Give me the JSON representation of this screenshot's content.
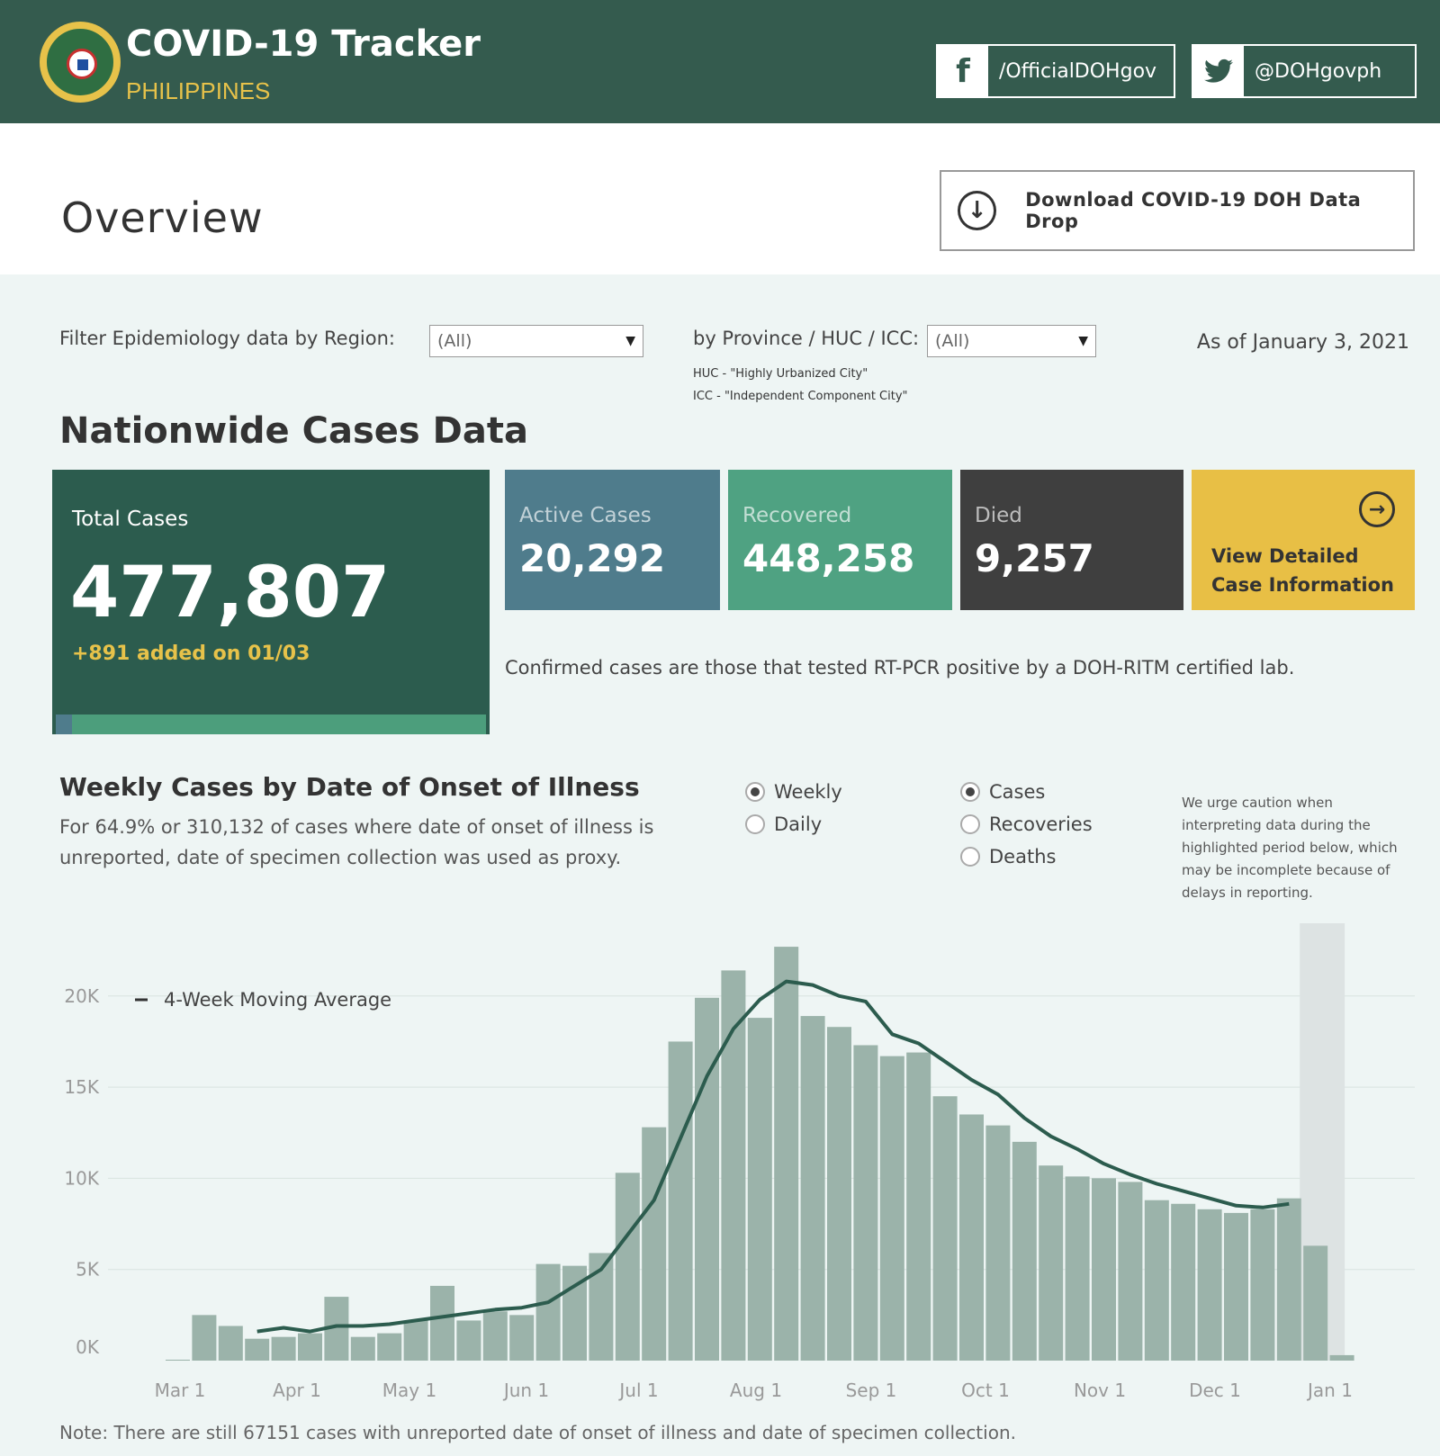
{
  "header": {
    "title": "COVID-19 Tracker",
    "subtitle": "PHILIPPINES",
    "facebook_label": "/OfficialDOHgov",
    "twitter_label": "@DOHgovph"
  },
  "overview": {
    "title": "Overview",
    "download_label": "Download COVID-19 DOH Data Drop"
  },
  "filters": {
    "region_label": "Filter Epidemiology data by Region:",
    "region_value": "(All)",
    "province_label": "by Province / HUC / ICC:",
    "province_value": "(All)",
    "huc_note": "HUC - \"Highly Urbanized City\"",
    "icc_note": "ICC - \"Independent Component City\"",
    "as_of": "As of January 3, 2021"
  },
  "nationwide": {
    "title": "Nationwide Cases Data",
    "total_label": "Total Cases",
    "total_value": "477,807",
    "added": "+891 added on 01/03",
    "active_label": "Active Cases",
    "active_value": "20,292",
    "recovered_label": "Recovered",
    "recovered_value": "448,258",
    "died_label": "Died",
    "died_value": "9,257",
    "view_line1": "View Detailed",
    "view_line2": "Case Information",
    "confirmed_note": "Confirmed cases are those that tested RT-PCR positive by a DOH-RITM certified lab.",
    "colors": {
      "total": "#2c5c4e",
      "active": "#4f7c8c",
      "recovered": "#4fa282",
      "died": "#3f3f3f",
      "view": "#e8bf45"
    }
  },
  "weekly": {
    "title": "Weekly Cases by Date of Onset of Illness",
    "sub_line1": "For 64.9% or 310,132 of cases where date of onset of illness is",
    "sub_line2": "unreported, date of specimen collection was used as proxy.",
    "options_period": [
      {
        "label": "Weekly",
        "selected": true
      },
      {
        "label": "Daily",
        "selected": false
      }
    ],
    "options_metric": [
      {
        "label": "Cases",
        "selected": true
      },
      {
        "label": "Recoveries",
        "selected": false
      },
      {
        "label": "Deaths",
        "selected": false
      }
    ],
    "caution": "We urge caution when interpreting data during the highlighted period below, which may be incomplete because of delays in reporting."
  },
  "chart_data": {
    "type": "bar",
    "title": "",
    "ylim": [
      0,
      23000
    ],
    "y_ticks": [
      0,
      5000,
      10000,
      15000,
      20000
    ],
    "y_tick_labels": [
      "0K",
      "5K",
      "10K",
      "15K",
      "20K"
    ],
    "x_tick_labels": [
      "Mar 1",
      "Apr 1",
      "May 1",
      "Jun 1",
      "Jul 1",
      "Aug 1",
      "Sep 1",
      "Oct 1",
      "Nov 1",
      "Dec 1",
      "Jan 1"
    ],
    "legend": "4-Week Moving Average",
    "bar_color": "#9bb3aa",
    "line_color": "#2c5c4e",
    "highlight_from_index": 43,
    "series": [
      {
        "name": "Cases",
        "type": "bar",
        "values": [
          50,
          2500,
          1900,
          1200,
          1300,
          1500,
          3500,
          1300,
          1500,
          2200,
          4100,
          2200,
          2700,
          2500,
          5300,
          5200,
          5900,
          10300,
          12800,
          17500,
          19900,
          21400,
          18800,
          22700,
          18900,
          18300,
          17300,
          16700,
          16900,
          14500,
          13500,
          12900,
          12000,
          10700,
          10100,
          10000,
          9800,
          8800,
          8600,
          8300,
          8100,
          8300,
          8900,
          6300,
          300
        ]
      },
      {
        "name": "4-Week Moving Average",
        "type": "line",
        "values": [
          null,
          null,
          null,
          1600,
          1800,
          1600,
          1900,
          1900,
          2000,
          2200,
          2400,
          2600,
          2800,
          2900,
          3200,
          4100,
          5000,
          6900,
          8800,
          12200,
          15600,
          18200,
          19800,
          20800,
          20600,
          20000,
          19700,
          17900,
          17400,
          16400,
          15400,
          14600,
          13300,
          12300,
          11600,
          10800,
          10200,
          9700,
          9300,
          8900,
          8500,
          8400,
          8600,
          null,
          null
        ]
      }
    ]
  },
  "bottom_note": "Note: There are still 67151 cases with unreported date of onset of illness and date of specimen collection."
}
